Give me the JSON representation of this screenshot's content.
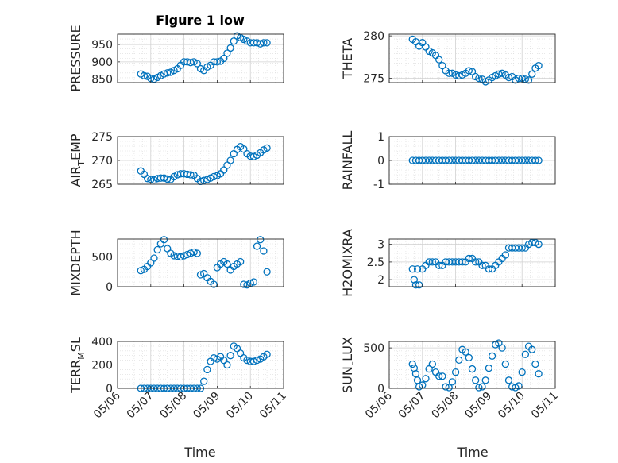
{
  "figure": {
    "title": "Figure 1 low",
    "xlabel": "Time",
    "marker_color": "#0072BD",
    "grid_color": "#dcdcdc",
    "axis_color": "#262626",
    "x_tick_labels": [
      "05/06",
      "05/07",
      "05/08",
      "05/09",
      "05/10",
      "05/11"
    ]
  },
  "chart_data": [
    {
      "type": "scatter",
      "marker": "circle",
      "ylabel": "PRESSURE",
      "x_unit": "days since 05/06",
      "xlim": [
        0,
        5
      ],
      "ylim": [
        840,
        980
      ],
      "yticks": [
        850,
        900,
        950
      ],
      "x": [
        0.7,
        0.8,
        0.9,
        1.0,
        1.1,
        1.2,
        1.3,
        1.4,
        1.5,
        1.6,
        1.7,
        1.8,
        1.9,
        2.0,
        2.1,
        2.2,
        2.3,
        2.4,
        2.5,
        2.6,
        2.7,
        2.8,
        2.9,
        3.0,
        3.1,
        3.2,
        3.3,
        3.4,
        3.5,
        3.6,
        3.7,
        3.8,
        3.9,
        4.0,
        4.1,
        4.2,
        4.3,
        4.4,
        4.5
      ],
      "y": [
        865,
        860,
        858,
        852,
        850,
        855,
        860,
        865,
        868,
        870,
        875,
        880,
        890,
        900,
        900,
        898,
        900,
        895,
        880,
        875,
        885,
        890,
        900,
        900,
        902,
        910,
        925,
        940,
        960,
        975,
        970,
        965,
        960,
        955,
        955,
        955,
        952,
        955,
        955
      ]
    },
    {
      "type": "scatter",
      "marker": "circle",
      "ylabel": "THETA",
      "x_unit": "days since 05/06",
      "xlim": [
        0,
        5
      ],
      "ylim": [
        274.5,
        280.2
      ],
      "yticks": [
        275,
        280
      ],
      "x": [
        0.7,
        0.8,
        0.9,
        1.0,
        1.1,
        1.2,
        1.3,
        1.4,
        1.5,
        1.6,
        1.7,
        1.8,
        1.9,
        2.0,
        2.1,
        2.2,
        2.3,
        2.4,
        2.5,
        2.6,
        2.7,
        2.8,
        2.9,
        3.0,
        3.1,
        3.2,
        3.3,
        3.4,
        3.5,
        3.6,
        3.7,
        3.8,
        3.9,
        4.0,
        4.1,
        4.2,
        4.3,
        4.4,
        4.5
      ],
      "y": [
        279.6,
        279.3,
        278.8,
        279.2,
        278.7,
        278.2,
        278.0,
        277.7,
        277.2,
        276.5,
        275.9,
        275.6,
        275.6,
        275.4,
        275.3,
        275.4,
        275.6,
        275.9,
        275.8,
        275.2,
        275.0,
        274.9,
        274.6,
        274.8,
        275.1,
        275.3,
        275.5,
        275.6,
        275.4,
        275.1,
        275.2,
        274.8,
        275.0,
        275.0,
        274.9,
        274.8,
        275.5,
        276.2,
        276.5
      ]
    },
    {
      "type": "scatter",
      "marker": "circle",
      "ylabel": "AIR_TEMP",
      "x_unit": "days since 05/06",
      "xlim": [
        0,
        5
      ],
      "ylim": [
        265,
        275
      ],
      "yticks": [
        265,
        270,
        275
      ],
      "x": [
        0.7,
        0.8,
        0.9,
        1.0,
        1.1,
        1.2,
        1.3,
        1.4,
        1.5,
        1.6,
        1.7,
        1.8,
        1.9,
        2.0,
        2.1,
        2.2,
        2.3,
        2.4,
        2.5,
        2.6,
        2.7,
        2.8,
        2.9,
        3.0,
        3.1,
        3.2,
        3.3,
        3.4,
        3.5,
        3.6,
        3.7,
        3.8,
        3.9,
        4.0,
        4.1,
        4.2,
        4.3,
        4.4,
        4.5
      ],
      "y": [
        267.8,
        267.1,
        266.2,
        266.0,
        265.9,
        266.2,
        266.3,
        266.3,
        266.1,
        266.0,
        266.6,
        267.0,
        267.2,
        267.2,
        267.1,
        267.0,
        266.9,
        266.2,
        265.6,
        265.8,
        266.0,
        266.3,
        266.6,
        266.8,
        267.2,
        268.0,
        269.0,
        270.0,
        271.4,
        272.3,
        272.9,
        272.4,
        271.4,
        270.9,
        270.8,
        271.1,
        271.6,
        272.2,
        272.6
      ]
    },
    {
      "type": "scatter",
      "marker": "circle",
      "ylabel": "RAINFALL",
      "x_unit": "days since 05/06",
      "xlim": [
        0,
        5
      ],
      "ylim": [
        -1,
        1
      ],
      "yticks": [
        -1,
        0,
        1
      ],
      "x": [
        0.7,
        0.8,
        0.9,
        1.0,
        1.1,
        1.2,
        1.3,
        1.4,
        1.5,
        1.6,
        1.7,
        1.8,
        1.9,
        2.0,
        2.1,
        2.2,
        2.3,
        2.4,
        2.5,
        2.6,
        2.7,
        2.8,
        2.9,
        3.0,
        3.1,
        3.2,
        3.3,
        3.4,
        3.5,
        3.6,
        3.7,
        3.8,
        3.9,
        4.0,
        4.1,
        4.2,
        4.3,
        4.4,
        4.5
      ],
      "y": [
        0,
        0,
        0,
        0,
        0,
        0,
        0,
        0,
        0,
        0,
        0,
        0,
        0,
        0,
        0,
        0,
        0,
        0,
        0,
        0,
        0,
        0,
        0,
        0,
        0,
        0,
        0,
        0,
        0,
        0,
        0,
        0,
        0,
        0,
        0,
        0,
        0,
        0,
        0
      ]
    },
    {
      "type": "scatter",
      "marker": "circle",
      "ylabel": "MIXDEPTH",
      "x_unit": "days since 05/06",
      "xlim": [
        0,
        5
      ],
      "ylim": [
        0,
        800
      ],
      "yticks": [
        0,
        500
      ],
      "x": [
        0.7,
        0.8,
        0.9,
        1.0,
        1.1,
        1.2,
        1.3,
        1.4,
        1.5,
        1.6,
        1.7,
        1.8,
        1.9,
        2.0,
        2.1,
        2.2,
        2.3,
        2.4,
        2.5,
        2.6,
        2.7,
        2.8,
        2.9,
        3.0,
        3.1,
        3.2,
        3.3,
        3.4,
        3.5,
        3.6,
        3.7,
        3.8,
        3.9,
        4.0,
        4.1,
        4.2,
        4.3,
        4.4,
        4.5
      ],
      "y": [
        270,
        290,
        340,
        400,
        480,
        620,
        720,
        790,
        640,
        560,
        520,
        510,
        500,
        520,
        540,
        560,
        580,
        560,
        200,
        220,
        150,
        90,
        40,
        320,
        380,
        420,
        380,
        280,
        340,
        380,
        420,
        40,
        30,
        60,
        80,
        680,
        790,
        600,
        250
      ]
    },
    {
      "type": "scatter",
      "marker": "circle",
      "ylabel": "H2OMIXRA",
      "x_unit": "days since 05/06",
      "xlim": [
        0,
        5
      ],
      "ylim": [
        1.8,
        3.15
      ],
      "yticks": [
        2,
        2.5,
        3
      ],
      "x": [
        0.7,
        0.75,
        0.8,
        0.85,
        0.9,
        1.0,
        1.1,
        1.2,
        1.3,
        1.4,
        1.5,
        1.6,
        1.7,
        1.8,
        1.9,
        2.0,
        2.1,
        2.2,
        2.3,
        2.4,
        2.5,
        2.6,
        2.7,
        2.8,
        2.9,
        3.0,
        3.1,
        3.2,
        3.3,
        3.4,
        3.5,
        3.6,
        3.7,
        3.8,
        3.9,
        4.0,
        4.1,
        4.2,
        4.3,
        4.4,
        4.5
      ],
      "y": [
        2.3,
        2.0,
        1.85,
        2.3,
        1.85,
        2.3,
        2.4,
        2.5,
        2.5,
        2.5,
        2.4,
        2.4,
        2.5,
        2.5,
        2.5,
        2.5,
        2.5,
        2.5,
        2.5,
        2.6,
        2.6,
        2.5,
        2.5,
        2.4,
        2.4,
        2.3,
        2.3,
        2.4,
        2.5,
        2.6,
        2.7,
        2.9,
        2.9,
        2.9,
        2.9,
        2.9,
        2.9,
        3.0,
        3.05,
        3.05,
        3.0
      ]
    },
    {
      "type": "scatter",
      "marker": "circle",
      "ylabel": "TERR_MSL",
      "x_unit": "days since 05/06",
      "xlim": [
        0,
        5
      ],
      "ylim": [
        0,
        400
      ],
      "yticks": [
        0,
        200,
        400
      ],
      "x": [
        0.7,
        0.8,
        0.9,
        1.0,
        1.1,
        1.2,
        1.3,
        1.4,
        1.5,
        1.6,
        1.7,
        1.8,
        1.9,
        2.0,
        2.1,
        2.2,
        2.3,
        2.4,
        2.5,
        2.6,
        2.7,
        2.8,
        2.9,
        3.0,
        3.1,
        3.2,
        3.3,
        3.4,
        3.5,
        3.6,
        3.7,
        3.8,
        3.9,
        4.0,
        4.1,
        4.2,
        4.3,
        4.4,
        4.5
      ],
      "y": [
        0,
        0,
        0,
        0,
        0,
        0,
        0,
        0,
        0,
        0,
        0,
        0,
        0,
        0,
        0,
        0,
        0,
        0,
        0,
        60,
        160,
        230,
        260,
        250,
        270,
        240,
        200,
        280,
        360,
        340,
        300,
        260,
        240,
        230,
        230,
        240,
        250,
        270,
        290
      ]
    },
    {
      "type": "scatter",
      "marker": "circle",
      "ylabel": "SUN_FLUX",
      "x_unit": "days since 05/06",
      "xlim": [
        0,
        5
      ],
      "ylim": [
        0,
        580
      ],
      "yticks": [
        0,
        500
      ],
      "x": [
        0.7,
        0.75,
        0.8,
        0.85,
        0.9,
        1.0,
        1.1,
        1.2,
        1.3,
        1.4,
        1.5,
        1.6,
        1.7,
        1.8,
        1.9,
        2.0,
        2.1,
        2.2,
        2.3,
        2.4,
        2.5,
        2.6,
        2.7,
        2.8,
        2.9,
        3.0,
        3.1,
        3.2,
        3.3,
        3.4,
        3.5,
        3.6,
        3.7,
        3.8,
        3.9,
        4.0,
        4.1,
        4.2,
        4.3,
        4.4,
        4.5
      ],
      "y": [
        300,
        250,
        180,
        100,
        20,
        40,
        120,
        240,
        300,
        200,
        150,
        150,
        20,
        10,
        80,
        200,
        350,
        480,
        450,
        380,
        240,
        100,
        10,
        20,
        100,
        250,
        400,
        540,
        560,
        500,
        300,
        100,
        20,
        10,
        30,
        200,
        420,
        520,
        480,
        300,
        180
      ]
    }
  ]
}
